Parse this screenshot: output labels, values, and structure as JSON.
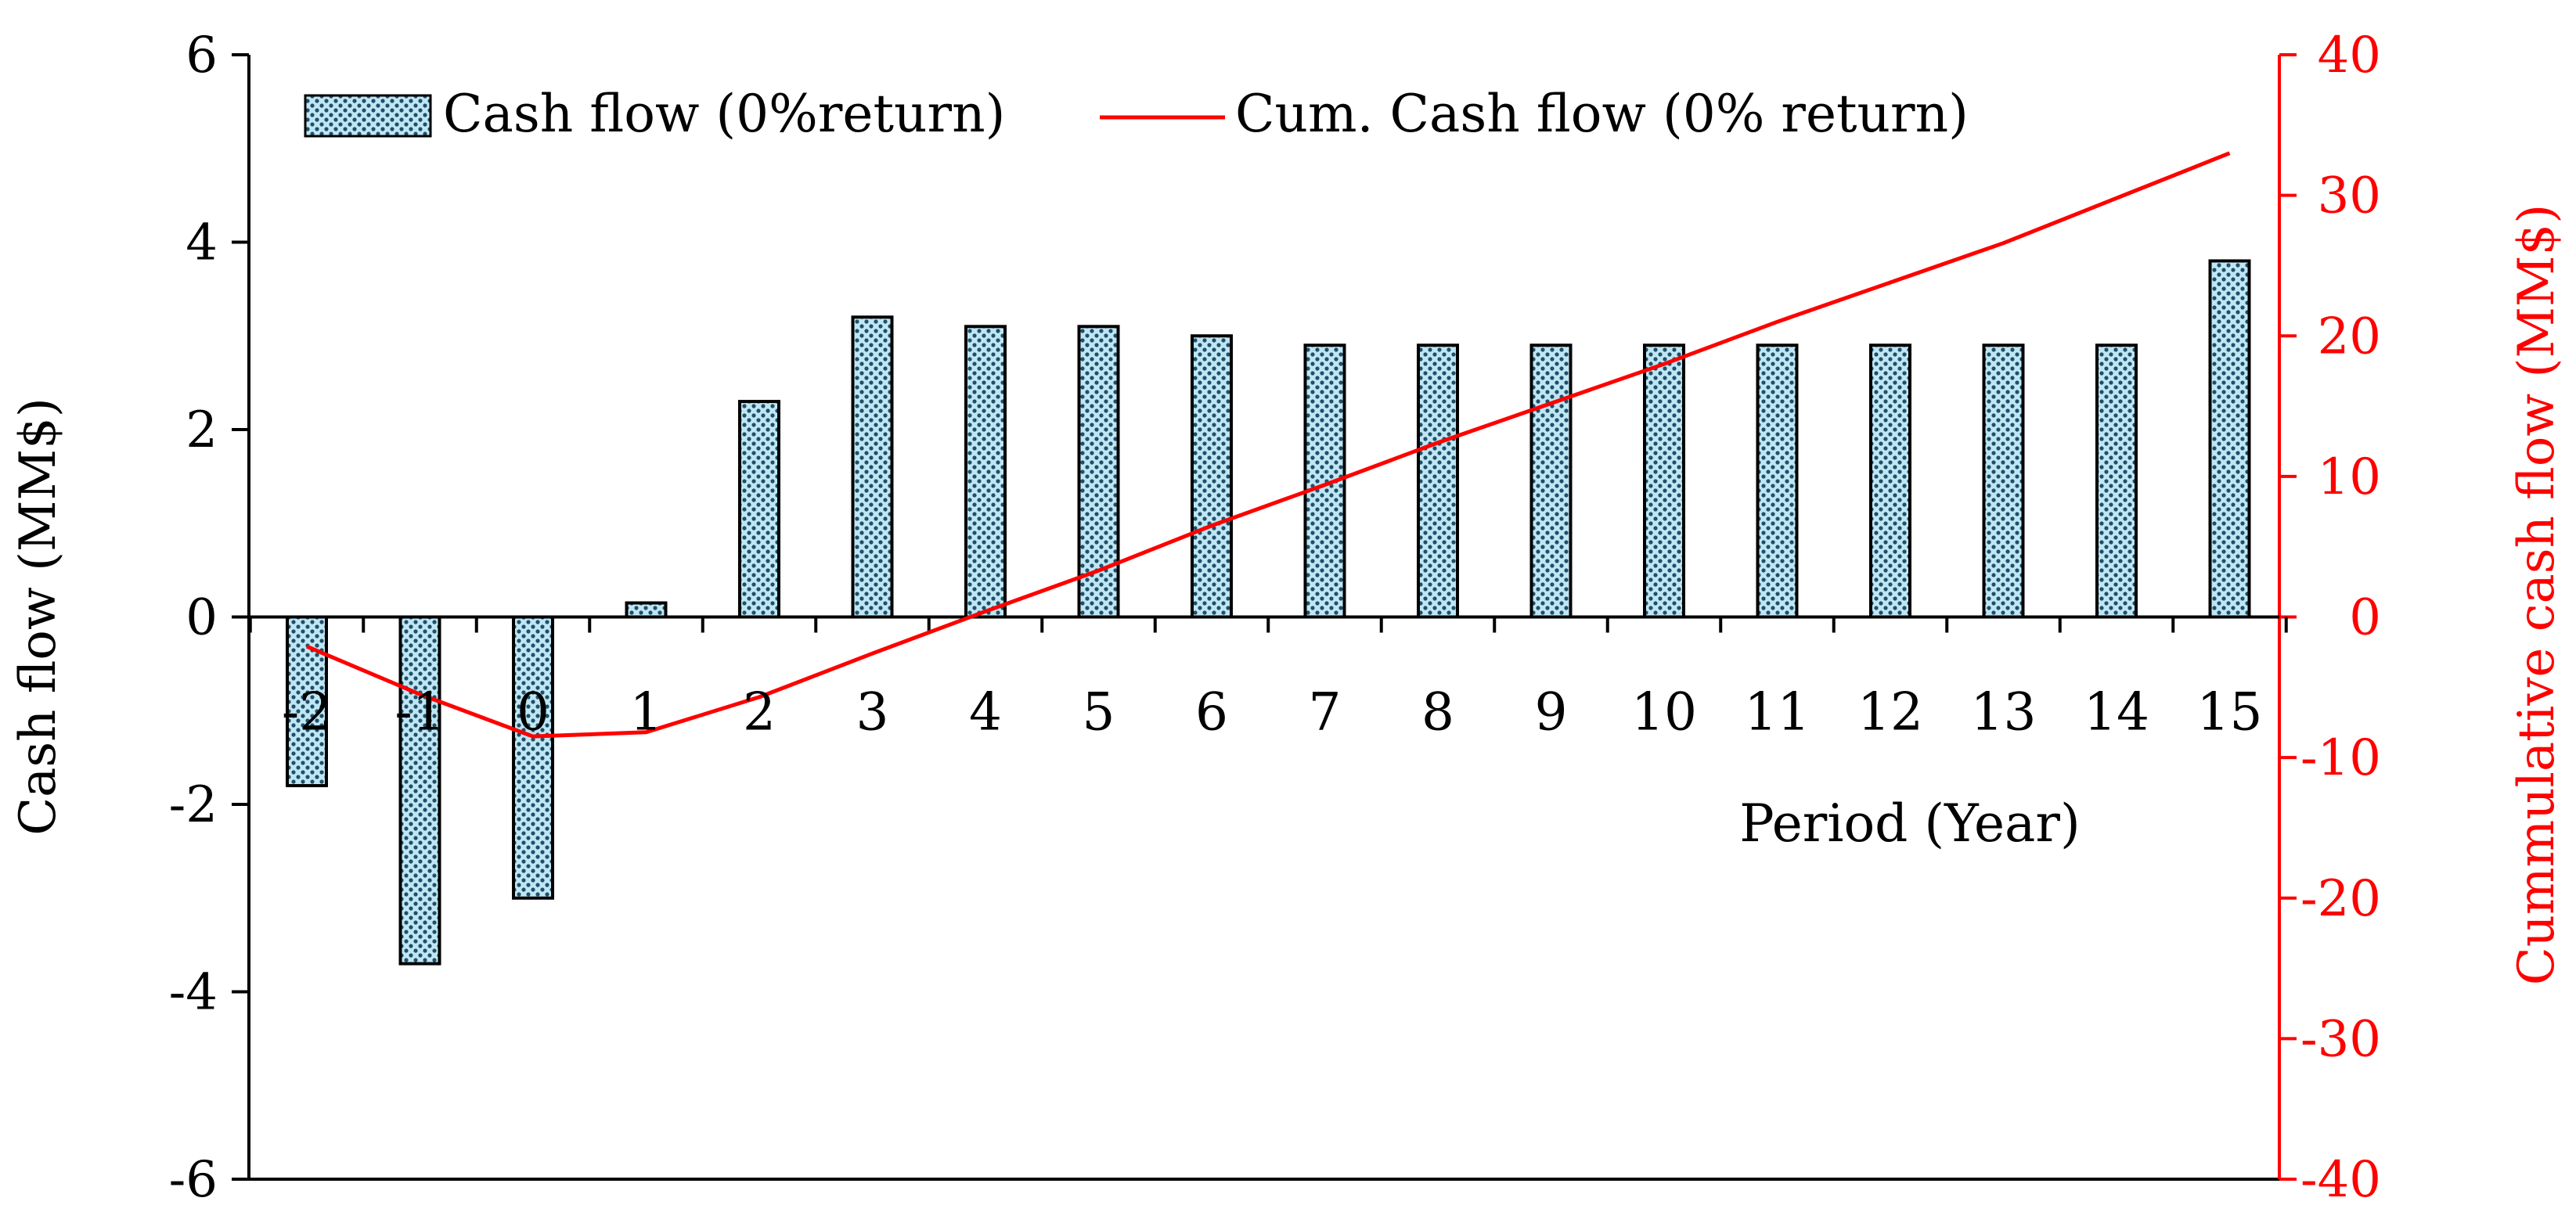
{
  "chart_data": {
    "type": "bar",
    "categories": [
      "-2",
      "-1",
      "0",
      "1",
      "2",
      "3",
      "4",
      "5",
      "6",
      "7",
      "8",
      "9",
      "10",
      "11",
      "12",
      "13",
      "14",
      "15"
    ],
    "series": [
      {
        "name": "Cash flow (0%return)",
        "type": "bar",
        "axis": "left",
        "values": [
          -1.8,
          -3.7,
          -3.0,
          0.15,
          2.3,
          3.2,
          3.1,
          3.1,
          3.0,
          2.9,
          2.9,
          2.9,
          2.9,
          2.9,
          2.9,
          2.9,
          2.9,
          3.8
        ]
      },
      {
        "name": "Cum. Cash flow (0% return)",
        "type": "line",
        "axis": "right",
        "values": [
          -2.1,
          -5.5,
          -8.5,
          -8.2,
          -5.7,
          -2.6,
          0.4,
          3.3,
          6.5,
          9.4,
          12.4,
          15.2,
          18.0,
          21.0,
          23.8,
          26.6,
          29.8,
          33.0
        ]
      }
    ],
    "xlabel": "Period (Year)",
    "ylabel": "Cash flow (MM$)",
    "y2label": "Cummulative cash flow (MM$)",
    "ylim": [
      -6,
      6
    ],
    "y2lim": [
      -40,
      40
    ],
    "yticks": [
      "-6",
      "-4",
      "-2",
      "0",
      "2",
      "4",
      "6"
    ],
    "y2ticks": [
      "-40",
      "-30",
      "-20",
      "-10",
      "0",
      "10",
      "20",
      "30",
      "40"
    ],
    "legend_placement": "top-left",
    "grid": false,
    "colors": {
      "bar_fill": "#8fd0e6",
      "bar_dots": "#1f4f6b",
      "line": "#ff0000",
      "right_axis": "#ff0000",
      "left_axis": "#000000"
    }
  }
}
